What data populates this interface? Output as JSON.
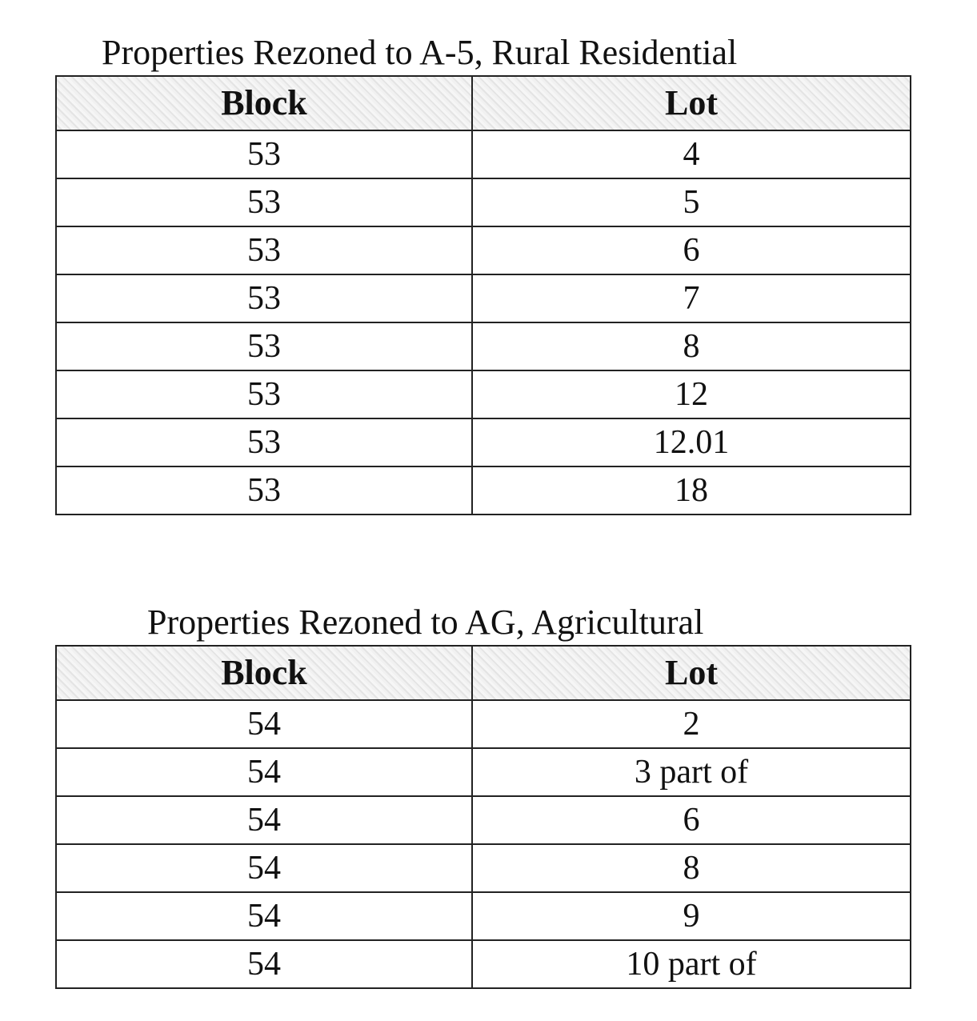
{
  "tables": [
    {
      "title": "Properties Rezoned to A-5, Rural Residential",
      "headers": [
        "Block",
        "Lot"
      ],
      "rows": [
        [
          "53",
          "4"
        ],
        [
          "53",
          "5"
        ],
        [
          "53",
          "6"
        ],
        [
          "53",
          "7"
        ],
        [
          "53",
          "8"
        ],
        [
          "53",
          "12"
        ],
        [
          "53",
          "12.01"
        ],
        [
          "53",
          "18"
        ]
      ]
    },
    {
      "title": "Properties Rezoned to AG, Agricultural",
      "headers": [
        "Block",
        "Lot"
      ],
      "rows": [
        [
          "54",
          "2"
        ],
        [
          "54",
          "3 part of"
        ],
        [
          "54",
          "6"
        ],
        [
          "54",
          "8"
        ],
        [
          "54",
          "9"
        ],
        [
          "54",
          "10 part of"
        ]
      ]
    }
  ]
}
